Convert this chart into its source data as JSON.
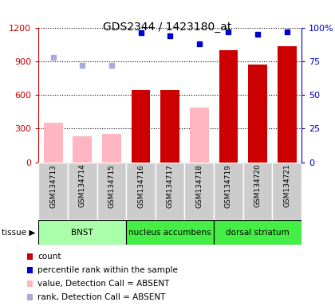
{
  "title": "GDS2344 / 1423180_at",
  "samples": [
    "GSM134713",
    "GSM134714",
    "GSM134715",
    "GSM134716",
    "GSM134717",
    "GSM134718",
    "GSM134719",
    "GSM134720",
    "GSM134721"
  ],
  "bar_values": [
    350,
    230,
    250,
    640,
    640,
    490,
    1000,
    870,
    1030
  ],
  "bar_absent": [
    true,
    true,
    true,
    false,
    false,
    true,
    false,
    false,
    false
  ],
  "rank_values": [
    78,
    72,
    72,
    96,
    94,
    88,
    97,
    95,
    97
  ],
  "rank_absent": [
    true,
    true,
    true,
    false,
    false,
    false,
    false,
    false,
    false
  ],
  "ylim_left": [
    0,
    1200
  ],
  "ylim_right": [
    0,
    100
  ],
  "yticks_left": [
    0,
    300,
    600,
    900,
    1200
  ],
  "ytick_labels_right": [
    "0",
    "25",
    "50",
    "75",
    "100%"
  ],
  "tissues": [
    {
      "label": "BNST",
      "start": 0,
      "end": 3,
      "color": "#AAFFAA"
    },
    {
      "label": "nucleus accumbens",
      "start": 3,
      "end": 6,
      "color": "#33EE33"
    },
    {
      "label": "dorsal striatum",
      "start": 6,
      "end": 9,
      "color": "#33EE33"
    }
  ],
  "bar_color_present": "#CC0000",
  "bar_color_absent": "#FFB6C1",
  "rank_color_present": "#0000CC",
  "rank_color_absent": "#AAAADD",
  "bg_color": "#FFFFFF",
  "title_color": "#000000",
  "left_axis_color": "#CC0000",
  "right_axis_color": "#0000CC",
  "grid_color": "#000000",
  "sample_bg_color": "#CCCCCC"
}
